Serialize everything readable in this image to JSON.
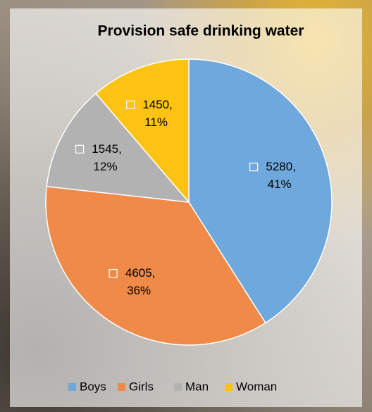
{
  "chart_data": {
    "type": "pie",
    "title": "Provision safe drinking water",
    "categories": [
      "Boys",
      "Girls",
      "Man",
      "Woman"
    ],
    "values": [
      5280,
      4605,
      1545,
      1450
    ],
    "value_labels": [
      "5280,",
      "4605,",
      "1545,",
      "1450,"
    ],
    "percent_labels": [
      "41%",
      "36%",
      "12%",
      "11%"
    ],
    "colors": [
      "#6fa8dc",
      "#ef8a48",
      "#b2b2b2",
      "#fdc314"
    ],
    "legend": "bottom"
  }
}
